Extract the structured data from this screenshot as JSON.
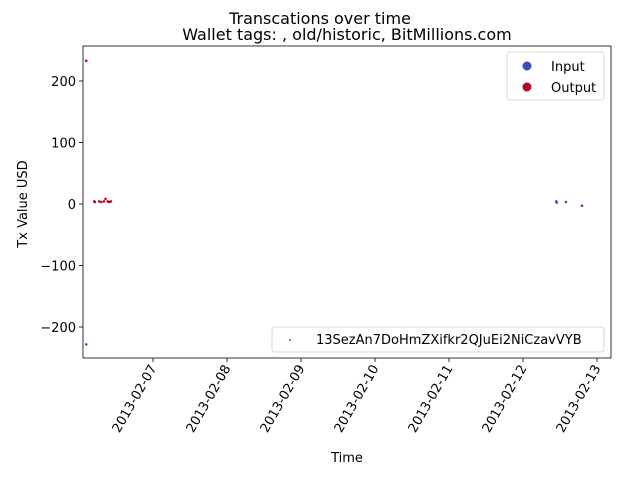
{
  "chart_data": {
    "type": "scatter",
    "suptitle": "Transcations over time",
    "title": "Wallet tags: , old/historic, BitMillions.com",
    "xlabel": "Time",
    "ylabel": "Tx Value USD",
    "xlim": [
      "2013-02-06 09:00",
      "2013-02-13 05:00"
    ],
    "ylim": [
      -252,
      252
    ],
    "x_ticks": [
      "2013-02-07",
      "2013-02-08",
      "2013-02-09",
      "2013-02-10",
      "2013-02-11",
      "2013-02-12",
      "2013-02-13"
    ],
    "y_ticks": [
      200,
      100,
      0,
      -100,
      -200
    ],
    "y_tick_labels": [
      "200",
      "100",
      "0",
      "−100",
      "−200"
    ],
    "grid": false,
    "series": [
      {
        "name": "Output",
        "color": "#b40426",
        "points": [
          {
            "x": "2013-02-06 10:00",
            "y": 228
          },
          {
            "x": "2013-02-06 12:30",
            "y": 1
          },
          {
            "x": "2013-02-06 12:40",
            "y": 0
          },
          {
            "x": "2013-02-06 14:00",
            "y": 1
          },
          {
            "x": "2013-02-06 14:40",
            "y": 0
          },
          {
            "x": "2013-02-06 15:30",
            "y": 1
          },
          {
            "x": "2013-02-06 16:00",
            "y": 5
          },
          {
            "x": "2013-02-06 16:40",
            "y": 1
          },
          {
            "x": "2013-02-06 17:10",
            "y": 0
          },
          {
            "x": "2013-02-06 17:40",
            "y": 1
          }
        ]
      },
      {
        "name": "Input",
        "color": "#3b4cc0",
        "points": [
          {
            "x": "2013-02-06 10:00",
            "y": -230
          },
          {
            "x": "2013-02-12 12:00",
            "y": 1
          },
          {
            "x": "2013-02-12 12:10",
            "y": -1
          },
          {
            "x": "2013-02-12 15:00",
            "y": 0
          },
          {
            "x": "2013-02-12 20:00",
            "y": -6
          }
        ]
      }
    ],
    "legend_upper": {
      "position": "upper-right",
      "entries": [
        {
          "label": "Input",
          "color": "#3b4cc0"
        },
        {
          "label": "Output",
          "color": "#b40426"
        }
      ]
    },
    "legend_lower": {
      "position": "lower-right",
      "entries": [
        {
          "label": "13SezAn7DoHmZXifkr2QJuEi2NiCzavVYB",
          "color": "#1f77b4"
        }
      ]
    }
  }
}
